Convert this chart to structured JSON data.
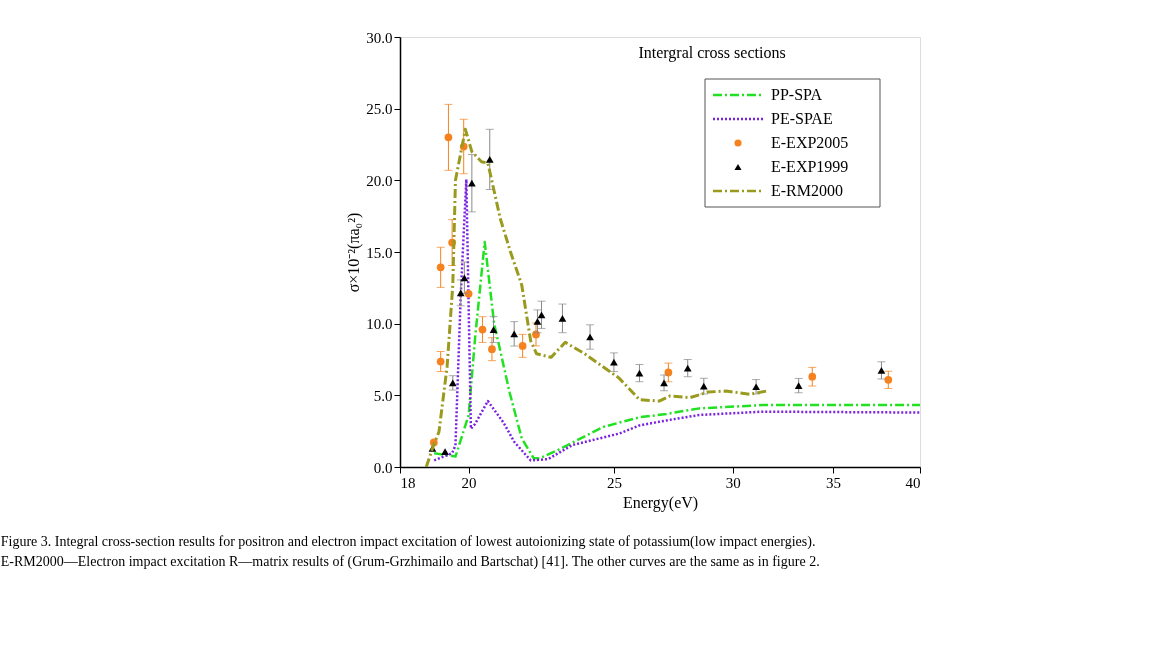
{
  "chart_data": {
    "type": "line",
    "title": "Intergral cross sections",
    "xlabel": "Energy(eV)",
    "ylabel": "σ×10⁻²(πa₀²)",
    "log": "x",
    "grid": false,
    "legend": "top right",
    "xlim": [
      18,
      40
    ],
    "xticks": [
      18,
      20,
      25,
      30,
      35,
      40
    ],
    "ylim": [
      0,
      30
    ],
    "yticks": [
      {
        "value": 0,
        "label": "0.0"
      },
      {
        "value": 5,
        "label": "5.0"
      },
      {
        "value": 10,
        "label": "10.0"
      },
      {
        "value": 15,
        "label": "15.0"
      },
      {
        "value": 20,
        "label": "20.0"
      },
      {
        "value": 25,
        "label": "25.0"
      },
      {
        "value": 30,
        "label": "30.0"
      }
    ],
    "series": [
      {
        "name": "PP-SPA",
        "type": "line",
        "color": "#22e022",
        "line_style": "dashed",
        "marker": "none",
        "x": [
          18.97,
          19.6,
          20.0,
          20.2,
          20.5,
          20.8,
          21.3,
          21.7,
          22.1,
          22.3,
          22.95,
          24.6,
          26.0,
          27.1,
          28.5,
          31.4,
          40
        ],
        "values": [
          0.96,
          0.73,
          3.6,
          9.0,
          15.7,
          10.0,
          5.2,
          2.0,
          0.62,
          0.6,
          1.2,
          2.8,
          3.47,
          3.7,
          4.09,
          4.32,
          4.32
        ]
      },
      {
        "name": "PE-SPAE",
        "type": "line",
        "color": "#7a22e0",
        "line_style": "dotted",
        "marker": "none",
        "x": [
          18.97,
          19.5,
          19.6,
          19.76,
          19.93,
          20.07,
          20.2,
          20.6,
          21.1,
          21.45,
          22.0,
          22.6,
          23.45,
          25.2,
          26.0,
          27.1,
          28.5,
          31.4,
          40
        ],
        "values": [
          0.46,
          0.96,
          1.5,
          12.0,
          20.07,
          2.67,
          3.0,
          4.6,
          3.1,
          1.76,
          0.46,
          0.55,
          1.53,
          2.33,
          2.9,
          3.25,
          3.63,
          3.86,
          3.8
        ]
      },
      {
        "name": "E-EXP2005",
        "type": "scatter",
        "color": "#f5821f",
        "marker": "circle",
        "x": [
          18.96,
          19.16,
          19.16,
          19.39,
          19.5,
          19.85,
          20.0,
          20.43,
          20.73,
          21.73,
          22.18,
          27.18,
          33.9,
          38.1
        ],
        "values": [
          1.71,
          7.36,
          13.93,
          23.0,
          15.66,
          22.36,
          12.08,
          9.59,
          8.22,
          8.45,
          9.25,
          6.6,
          6.3,
          6.08
        ],
        "errors": [
          null,
          0.7,
          1.4,
          2.3,
          1.6,
          1.9,
          null,
          0.9,
          0.8,
          0.8,
          0.8,
          0.65,
          0.65,
          0.6
        ]
      },
      {
        "name": "E-EXP1999",
        "type": "scatter",
        "color": "#000000",
        "marker": "triangle",
        "x": [
          18.92,
          19.29,
          19.52,
          19.76,
          19.87,
          20.1,
          20.66,
          20.78,
          21.45,
          22.23,
          22.37,
          23.1,
          24.1,
          25.0,
          26.0,
          27.0,
          28.0,
          28.7,
          31.1,
          33.2,
          37.7
        ],
        "values": [
          1.3,
          1.07,
          5.87,
          12.15,
          13.2,
          19.8,
          21.46,
          9.59,
          9.29,
          10.16,
          10.62,
          10.37,
          9.07,
          7.31,
          6.55,
          5.87,
          6.9,
          5.64,
          5.6,
          5.68,
          6.74
        ],
        "errors": [
          null,
          null,
          0.5,
          0.9,
          1.1,
          2.0,
          2.1,
          0.9,
          0.85,
          0.8,
          0.95,
          1.0,
          0.85,
          0.65,
          0.6,
          0.55,
          0.6,
          0.55,
          0.5,
          0.5,
          0.6
        ]
      },
      {
        "name": "E-RM2000",
        "type": "line",
        "color": "#9a9a1e",
        "line_style": "dashed",
        "marker": "none",
        "x": [
          18.74,
          18.95,
          19.11,
          19.35,
          19.52,
          19.6,
          19.9,
          20.1,
          20.4,
          20.6,
          21.0,
          21.33,
          21.7,
          22.0,
          22.2,
          22.7,
          23.2,
          23.9,
          25.2,
          26.0,
          26.8,
          27.25,
          28.1,
          28.9,
          29.7,
          30.8,
          31.6
        ],
        "values": [
          0.0,
          1.5,
          2.45,
          7.0,
          12.7,
          20.0,
          23.56,
          22.0,
          21.3,
          21.2,
          17.3,
          15.0,
          12.7,
          8.8,
          7.9,
          7.65,
          8.7,
          7.9,
          6.2,
          4.7,
          4.6,
          4.96,
          4.84,
          5.23,
          5.3,
          5.07,
          5.3
        ]
      }
    ],
    "annotations": [
      "Figure 3. Integral cross-section results for positron and electron impact excitation of lowest autoionizing state of potassium(low impact energies). E-RM2000—Electron impact excitation R—matrix results of (Grum-Grzhimailo and Bartschat) [41]. The other curves are the same as in figure 2."
    ]
  }
}
